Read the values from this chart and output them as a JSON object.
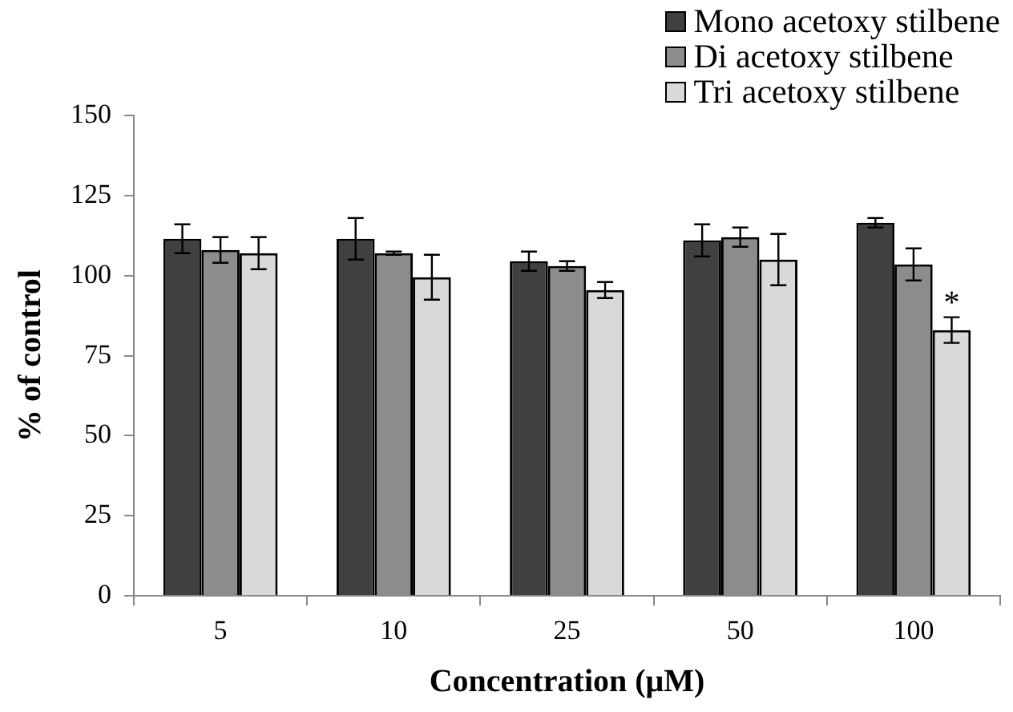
{
  "chart_data": {
    "type": "bar",
    "xlabel": "Concentration (μM)",
    "ylabel": "% of control",
    "categories": [
      "5",
      "10",
      "25",
      "50",
      "100"
    ],
    "series": [
      {
        "name": "Mono acetoxy stilbene",
        "color": "#404040",
        "values": [
          111.5,
          111.5,
          104.5,
          111,
          116.5
        ],
        "errors": [
          4.5,
          6.5,
          3,
          5,
          1.5
        ]
      },
      {
        "name": "Di acetoxy stilbene",
        "color": "#8c8c8c",
        "values": [
          108,
          107,
          103,
          112,
          103.5
        ],
        "errors": [
          4,
          0.5,
          1.5,
          3,
          5
        ]
      },
      {
        "name": "Tri acetoxy stilbene",
        "color": "#d9d9d9",
        "values": [
          107,
          99.5,
          95.5,
          105,
          83
        ],
        "errors": [
          5,
          7,
          2.5,
          8,
          4
        ]
      }
    ],
    "ylim": [
      0,
      150
    ],
    "yticks": [
      0,
      25,
      50,
      75,
      100,
      125,
      150
    ],
    "grid": false,
    "legend": "top right",
    "annotations": [
      "*"
    ]
  }
}
